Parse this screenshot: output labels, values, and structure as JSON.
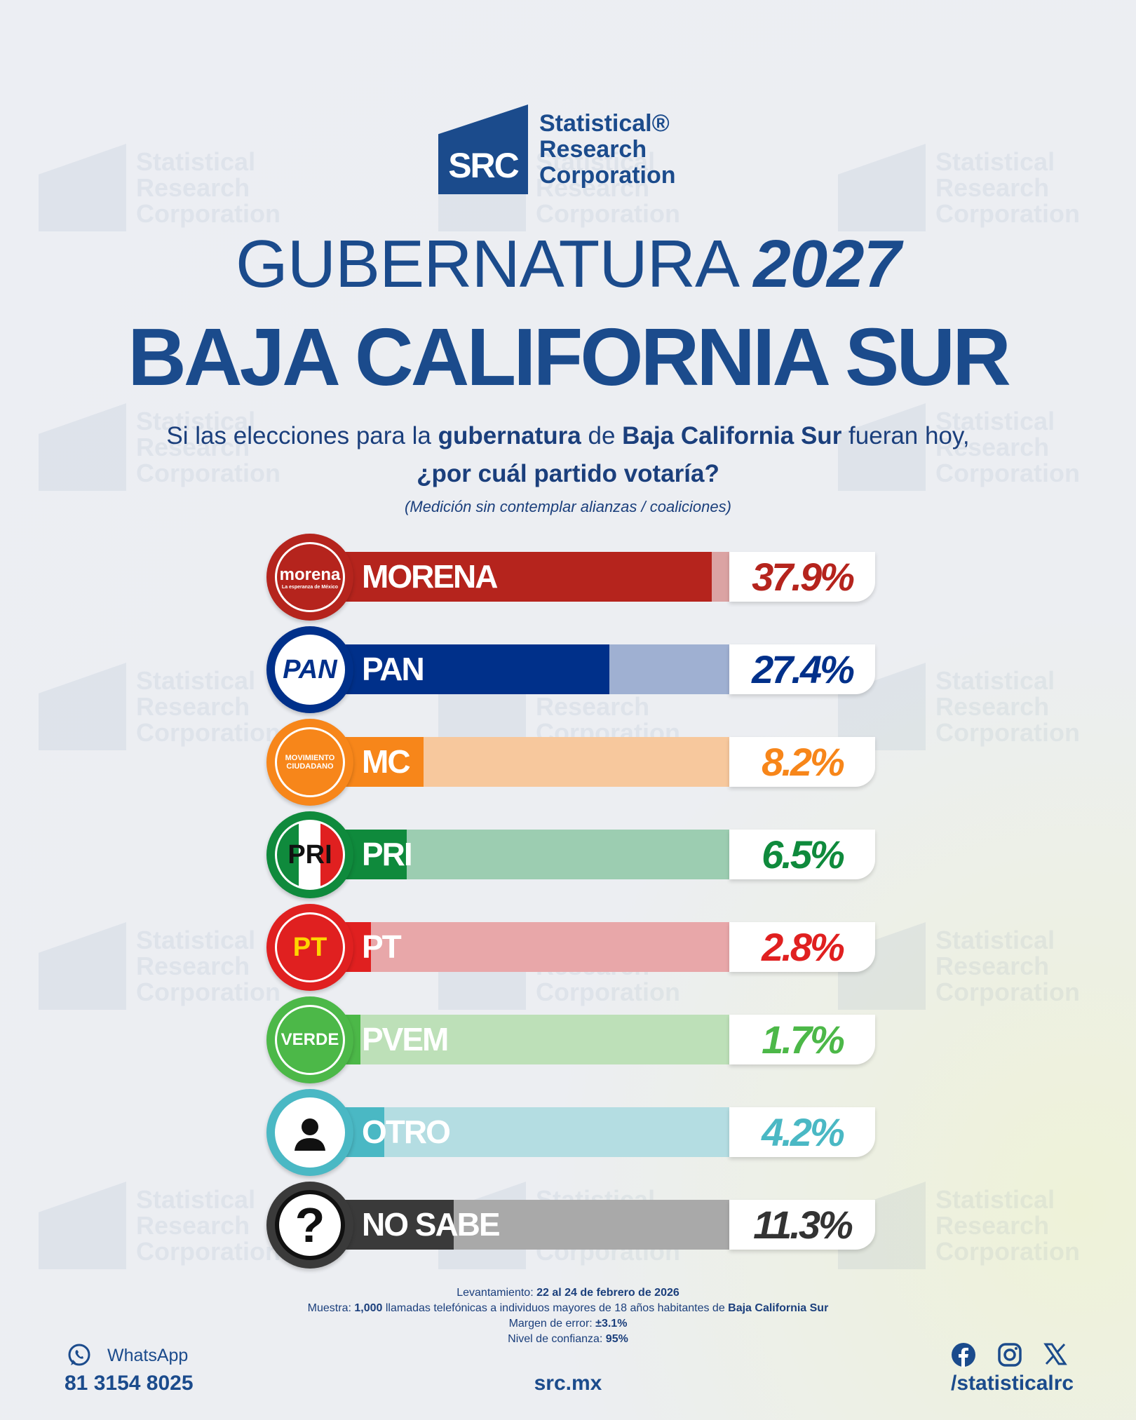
{
  "brand": {
    "logo_abbr": "SRC",
    "name_lines": [
      "Statistical®",
      "Research",
      "Corporation"
    ]
  },
  "title": {
    "line1_light": "GUBERNATURA",
    "line1_bold": "2027",
    "line2": "BAJA CALIFORNIA SUR"
  },
  "question": {
    "p1": "Si las elecciones para la ",
    "b1": "gubernatura",
    "p2": " de ",
    "b2": "Baja California Sur",
    "p3": " fueran hoy,",
    "line2": "¿por cuál partido votaría?",
    "note": "(Medición sin contemplar alianzas / coaliciones)"
  },
  "chart_data": {
    "type": "bar",
    "orientation": "horizontal",
    "unit": "%",
    "categories": [
      "MORENA",
      "PAN",
      "MC",
      "PRI",
      "PT",
      "PVEM",
      "OTRO",
      "NO SABE"
    ],
    "values": [
      37.9,
      27.4,
      8.2,
      6.5,
      2.8,
      1.7,
      4.2,
      11.3
    ],
    "value_labels": [
      "37.9%",
      "27.4%",
      "8.2%",
      "6.5%",
      "2.8%",
      "1.7%",
      "4.2%",
      "11.3%"
    ],
    "colors": [
      "#b5241d",
      "#00308a",
      "#f7861a",
      "#0f8a3c",
      "#e02020",
      "#4cb848",
      "#4ab8c4",
      "#3a3a3a"
    ],
    "track_colors": [
      "#dba3a3",
      "#9fb0d2",
      "#f7c89d",
      "#9ccdb1",
      "#e8a7a9",
      "#bde0b8",
      "#b4dde2",
      "#a9a9a9"
    ],
    "value_colors": [
      "#b5241d",
      "#00308a",
      "#f7861a",
      "#0f8a3c",
      "#e02020",
      "#4cb848",
      "#4ab8c4",
      "#333333"
    ],
    "logos": [
      {
        "text": "morena",
        "sub": "La esperanza de México"
      },
      {
        "text": "PAN"
      },
      {
        "text": "MOVIMIENTO CIUDADANO"
      },
      {
        "text": "PRI"
      },
      {
        "text": "PT"
      },
      {
        "text": "VERDE"
      },
      {
        "icon": "person-icon"
      },
      {
        "icon": "question-icon"
      }
    ],
    "xlim": [
      0,
      40
    ]
  },
  "methodology": [
    {
      "label": "Levantamiento: ",
      "value": "22 al 24 de febrero de 2026"
    },
    {
      "label": "Muestra: ",
      "value": "1,000",
      "rest": " llamadas telefónicas a individuos mayores de 18 años habitantes de ",
      "value2": "Baja California Sur"
    },
    {
      "label": "Margen de error: ",
      "value": "±3.1%"
    },
    {
      "label": "Nivel de confianza: ",
      "value": "95%"
    }
  ],
  "footer": {
    "whatsapp_label": "WhatsApp",
    "phone": "81 3154 8025",
    "website": "src.mx",
    "social_handle": "/statisticalrc",
    "social_icons": [
      "facebook-icon",
      "instagram-icon",
      "x-icon"
    ]
  }
}
